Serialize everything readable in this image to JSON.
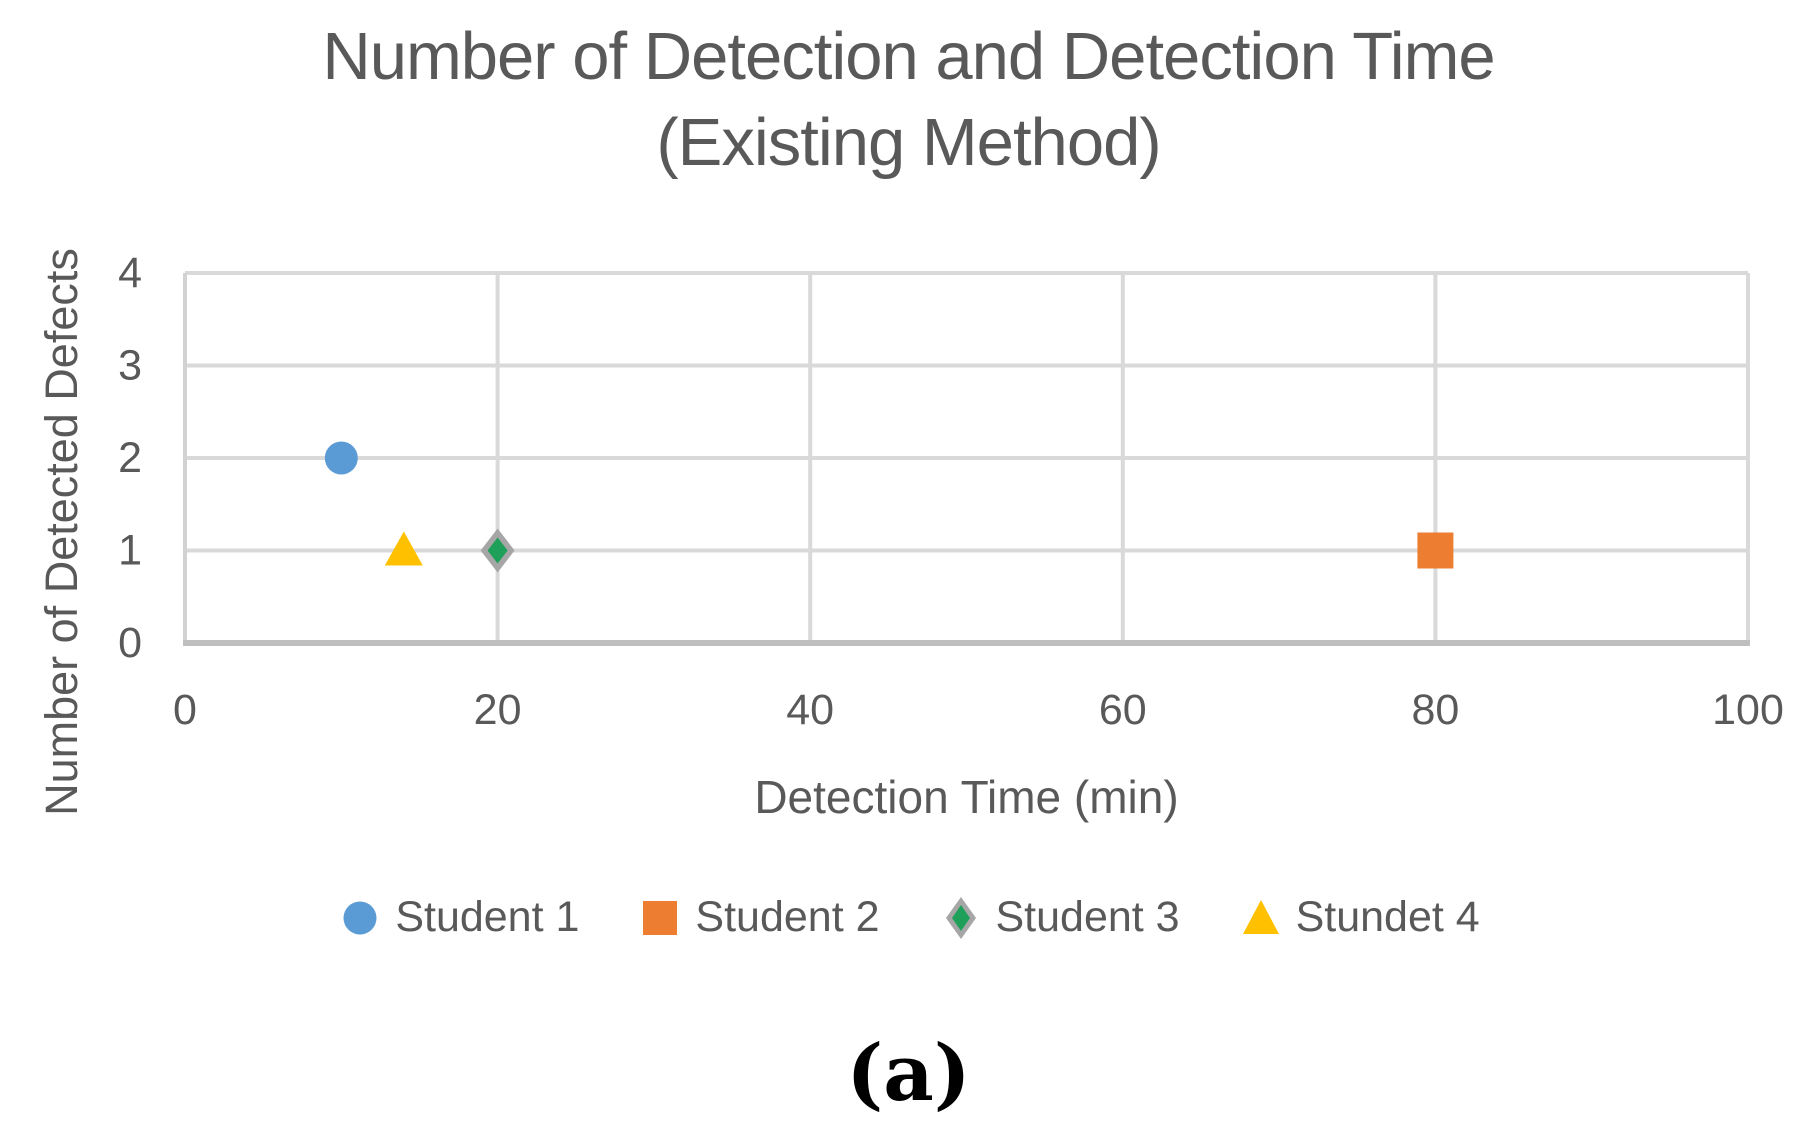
{
  "caption": "(a)",
  "chart_data": {
    "type": "scatter",
    "title_line1": "Number of Detection and Detection Time",
    "title_line2": "(Existing Method)",
    "xlabel": "Detection Time (min)",
    "ylabel": "Number of Detected Defects",
    "xlim": [
      0,
      100
    ],
    "ylim": [
      0,
      4
    ],
    "x_ticks": [
      0,
      20,
      40,
      60,
      80,
      100
    ],
    "y_ticks": [
      0,
      1,
      2,
      3,
      4
    ],
    "grid": true,
    "legend_position": "bottom",
    "series": [
      {
        "name": "Student 1",
        "marker": "circle",
        "color": "#5B9BD5",
        "points": [
          {
            "x": 10,
            "y": 2
          }
        ]
      },
      {
        "name": "Student 2",
        "marker": "square",
        "color": "#ED7D31",
        "points": [
          {
            "x": 80,
            "y": 1
          }
        ]
      },
      {
        "name": "Student 3",
        "marker": "diamond",
        "color": "#1EA05A",
        "border_color": "#A6A6A6",
        "points": [
          {
            "x": 20,
            "y": 1
          }
        ]
      },
      {
        "name": "Stundet 4",
        "marker": "triangle",
        "color": "#FFC000",
        "points": [
          {
            "x": 14,
            "y": 1
          }
        ]
      }
    ],
    "colors": {
      "text": "#595959",
      "gridline": "#D9D9D9",
      "plot_border": "#D2D2D2",
      "axis_line": "#BFBFBF"
    }
  }
}
